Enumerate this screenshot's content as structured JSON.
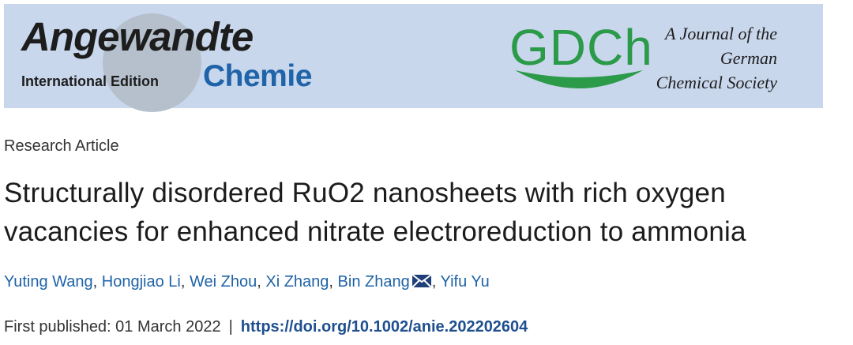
{
  "banner": {
    "journal_title": "Angewandte",
    "journal_edition": "International Edition",
    "journal_sub": "Chemie",
    "society_logo": "GDCh",
    "society_lines": [
      "A Journal of the",
      "German",
      "Chemical Society"
    ],
    "colors": {
      "background": "#c9d7ec",
      "chemie": "#1f63a8",
      "gdch": "#2b9a49"
    }
  },
  "article": {
    "type": "Research Article",
    "title_line1": "Structurally disordered RuO2 nanosheets with rich oxygen",
    "title_line2": "vacancies for enhanced nitrate electroreduction to ammonia",
    "authors": [
      "Yuting Wang",
      "Hongjiao Li",
      "Wei Zhou",
      "Xi Zhang",
      "Bin Zhang",
      "Yifu Yu"
    ],
    "corresponding_icon": "mail-icon",
    "published_label": "First published: 01 March 2022",
    "separator": "|",
    "doi": "https://doi.org/10.1002/anie.202202604"
  }
}
